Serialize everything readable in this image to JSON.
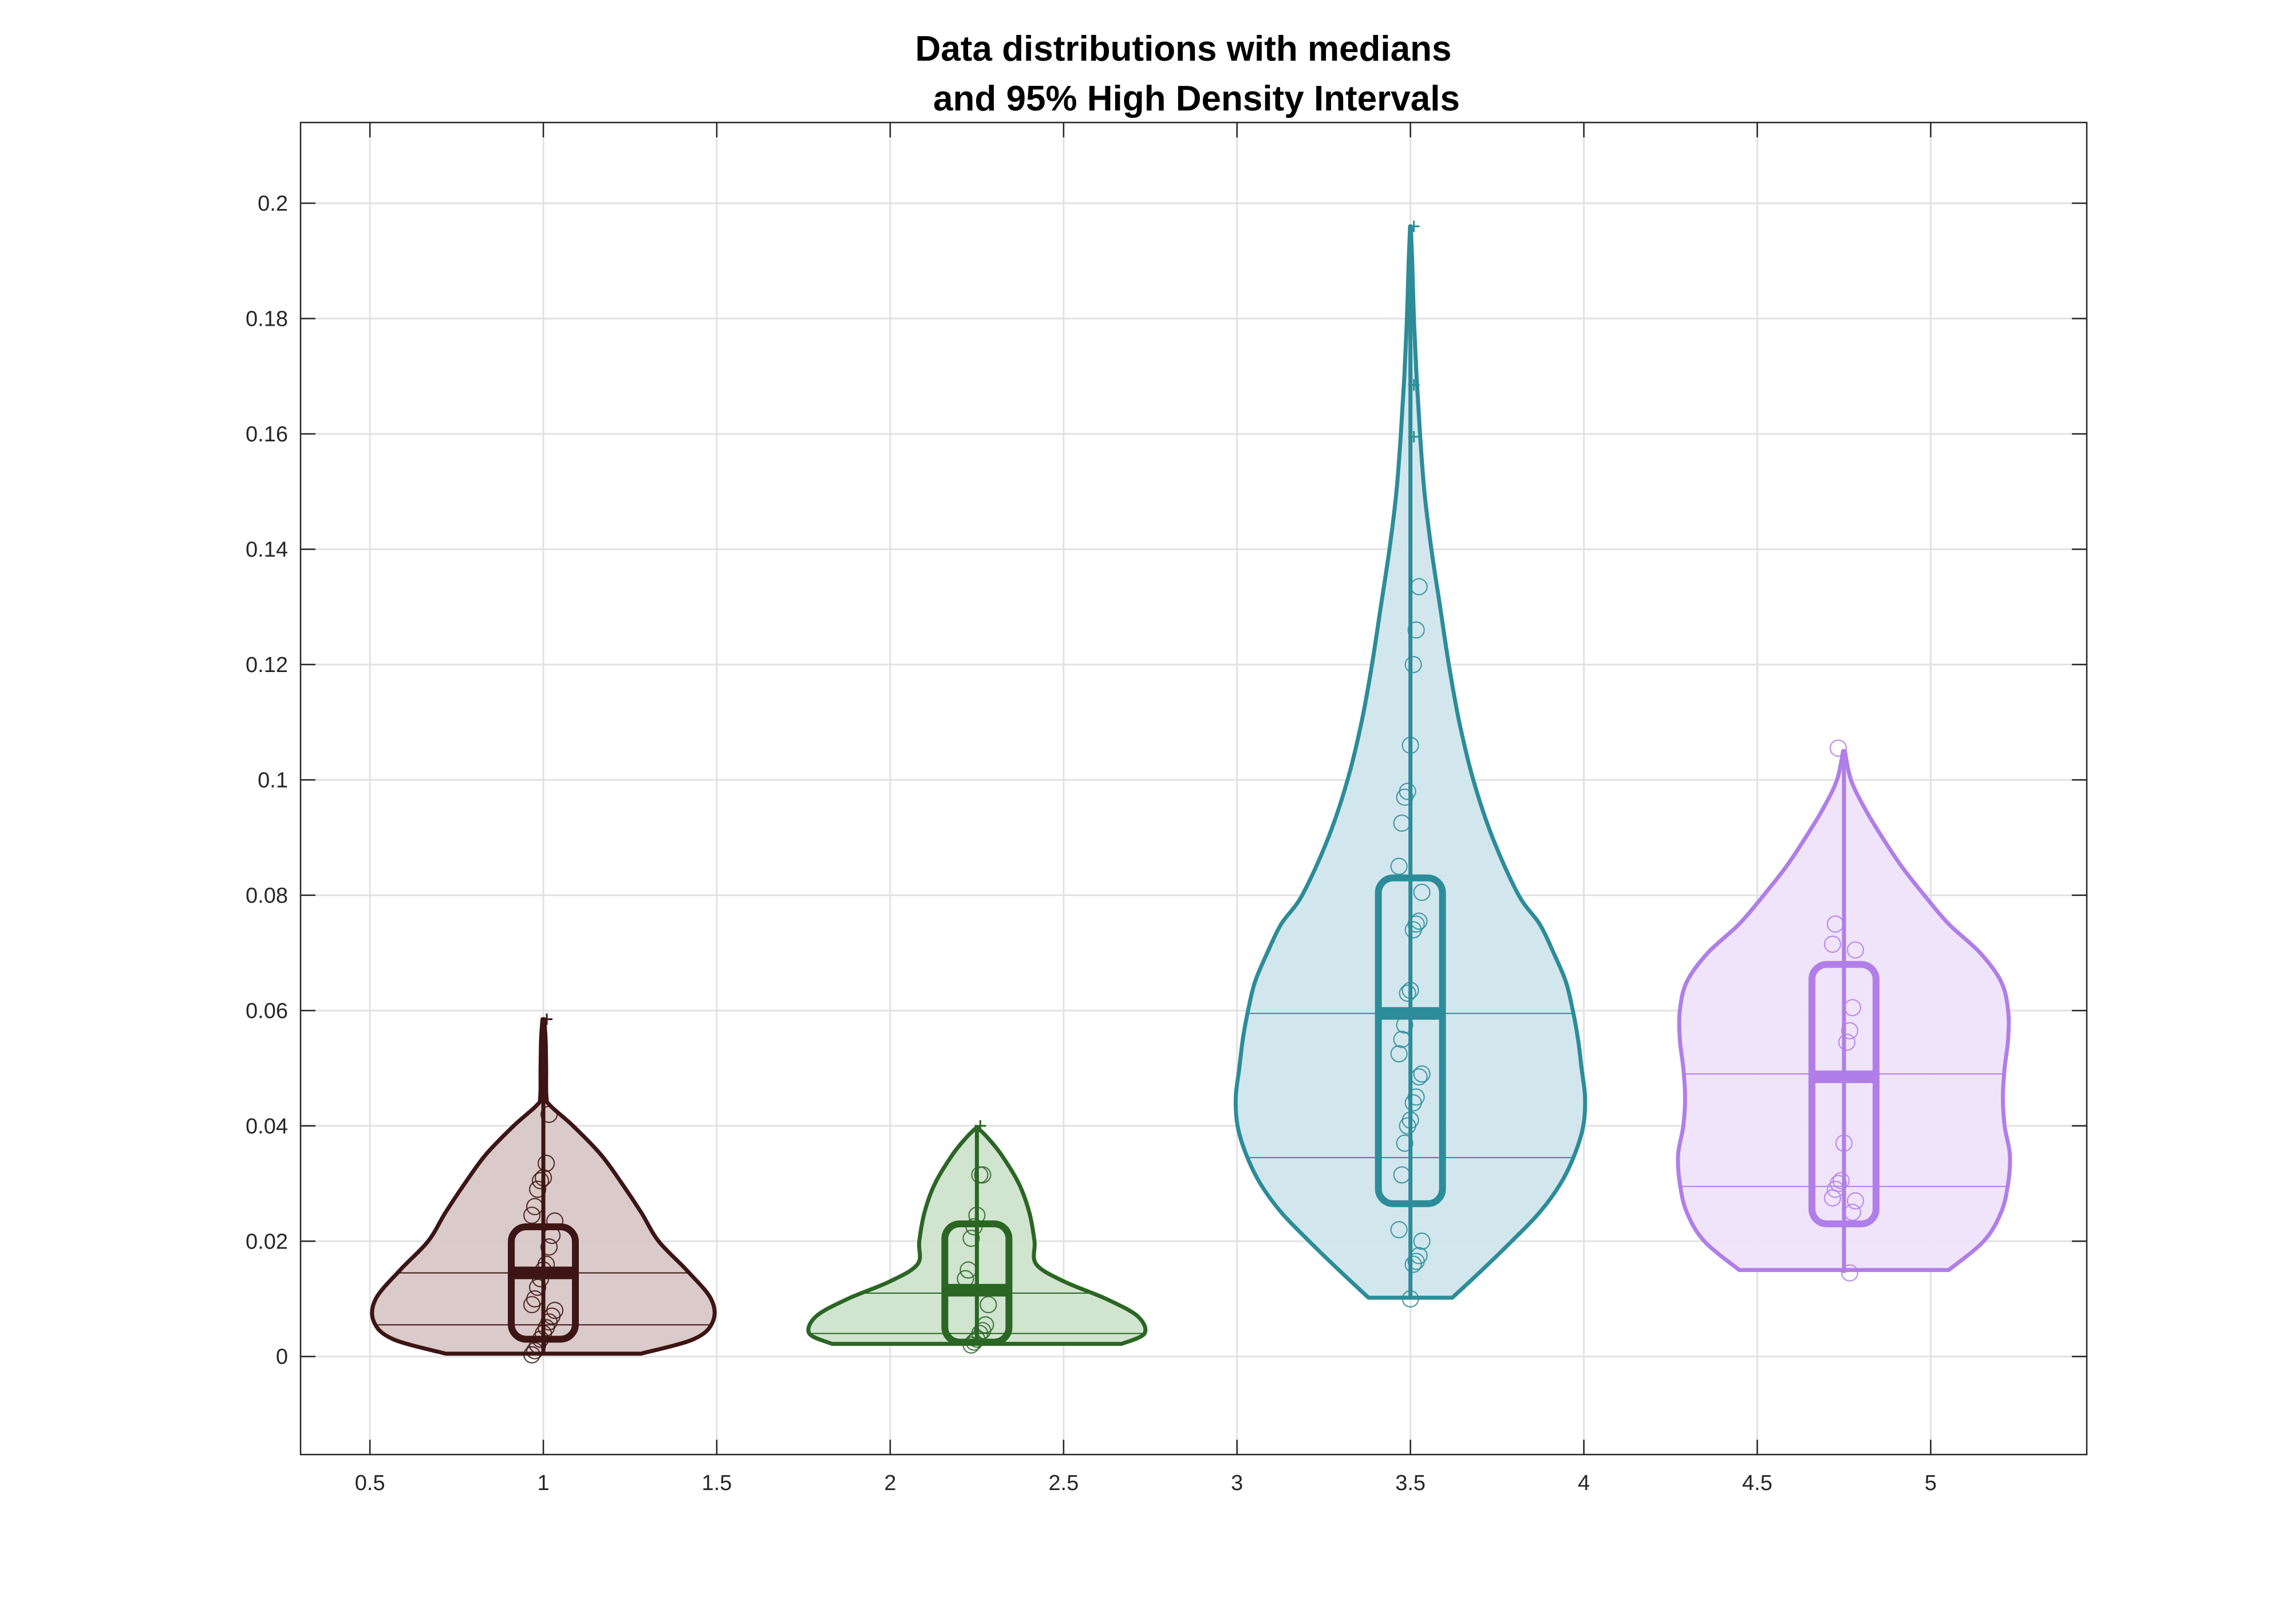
{
  "chart_data": {
    "type": "violin",
    "title": [
      "Data distributions with medians",
      "and 95% High Density Intervals"
    ],
    "xlabel": "",
    "ylabel": "",
    "xlim": [
      0.3,
      5.45
    ],
    "ylim": [
      -0.017,
      0.214
    ],
    "xticks": [
      0.5,
      1,
      1.5,
      2,
      2.5,
      3,
      3.5,
      4,
      4.5,
      5
    ],
    "xtick_labels": [
      "0.5",
      "1",
      "1.5",
      "2",
      "2.5",
      "3",
      "3.5",
      "4",
      "4.5",
      "5"
    ],
    "yticks": [
      0,
      0.02,
      0.04,
      0.06,
      0.08,
      0.1,
      0.12,
      0.14,
      0.16,
      0.18,
      0.2
    ],
    "ytick_labels": [
      "0",
      "0.02",
      "0.04",
      "0.06",
      "0.08",
      "0.1",
      "0.12",
      "0.14",
      "0.16",
      "0.18",
      "0.2"
    ],
    "grid": true,
    "series": [
      {
        "position": 1,
        "color": "#3d1515",
        "fill": "#d9c7c7",
        "median": 0.0145,
        "hdi": [
          0.0055,
          0.0145
        ],
        "box": [
          0.003,
          0.0225
        ],
        "whisker": [
          0.0003,
          0.0585
        ],
        "points": [
          0.0003,
          0.001,
          0.002,
          0.003,
          0.004,
          0.005,
          0.006,
          0.007,
          0.008,
          0.009,
          0.01,
          0.012,
          0.0135,
          0.015,
          0.016,
          0.019,
          0.021,
          0.0235,
          0.0245,
          0.026,
          0.029,
          0.0305,
          0.031,
          0.0335,
          0.042
        ],
        "outliers": [
          0.0585
        ],
        "profile": [
          [
            0.0005,
            0.56
          ],
          [
            0.003,
            0.86
          ],
          [
            0.006,
            0.97
          ],
          [
            0.01,
            0.96
          ],
          [
            0.015,
            0.82
          ],
          [
            0.02,
            0.66
          ],
          [
            0.025,
            0.56
          ],
          [
            0.03,
            0.45
          ],
          [
            0.035,
            0.33
          ],
          [
            0.04,
            0.17
          ],
          [
            0.0435,
            0.04
          ],
          [
            0.045,
            0.018
          ],
          [
            0.05,
            0.016
          ],
          [
            0.055,
            0.013
          ],
          [
            0.0585,
            0.005
          ]
        ]
      },
      {
        "position": 2.25,
        "color": "#2b6624",
        "fill": "#cde3cc",
        "median": 0.0115,
        "hdi": [
          0.004,
          0.011
        ],
        "box": [
          0.0025,
          0.023
        ],
        "whisker": [
          0.002,
          0.04
        ],
        "points": [
          0.002,
          0.0025,
          0.003,
          0.004,
          0.0045,
          0.0055,
          0.009,
          0.0135,
          0.015,
          0.0205,
          0.0225,
          0.0245,
          0.0315,
          0.0315
        ],
        "outliers": [
          0.04
        ],
        "profile": [
          [
            0.0022,
            0.83
          ],
          [
            0.004,
            0.96
          ],
          [
            0.007,
            0.92
          ],
          [
            0.01,
            0.74
          ],
          [
            0.013,
            0.5
          ],
          [
            0.016,
            0.34
          ],
          [
            0.02,
            0.33
          ],
          [
            0.025,
            0.3
          ],
          [
            0.03,
            0.24
          ],
          [
            0.035,
            0.14
          ],
          [
            0.038,
            0.06
          ],
          [
            0.0395,
            0.01
          ]
        ]
      },
      {
        "position": 3.5,
        "color": "#2d8c99",
        "fill": "#d0e6ec",
        "median": 0.0595,
        "hdi": [
          0.0345,
          0.0595
        ],
        "box": [
          0.0265,
          0.083
        ],
        "whisker": [
          0.01,
          0.196
        ],
        "points": [
          0.01,
          0.016,
          0.0165,
          0.0175,
          0.02,
          0.022,
          0.0315,
          0.037,
          0.04,
          0.041,
          0.044,
          0.045,
          0.0485,
          0.049,
          0.0525,
          0.055,
          0.0575,
          0.063,
          0.0635,
          0.074,
          0.075,
          0.0755,
          0.0805,
          0.085,
          0.0925,
          0.097,
          0.098,
          0.106,
          0.12,
          0.126,
          0.1335
        ],
        "outliers": [
          0.1595,
          0.1685,
          0.196
        ],
        "profile": [
          [
            0.0102,
            0.24
          ],
          [
            0.015,
            0.41
          ],
          [
            0.02,
            0.58
          ],
          [
            0.025,
            0.74
          ],
          [
            0.03,
            0.86
          ],
          [
            0.035,
            0.94
          ],
          [
            0.04,
            0.99
          ],
          [
            0.045,
            1.0
          ],
          [
            0.05,
            0.98
          ],
          [
            0.055,
            0.96
          ],
          [
            0.06,
            0.93
          ],
          [
            0.065,
            0.89
          ],
          [
            0.07,
            0.82
          ],
          [
            0.075,
            0.74
          ],
          [
            0.08,
            0.62
          ],
          [
            0.09,
            0.47
          ],
          [
            0.1,
            0.36
          ],
          [
            0.11,
            0.28
          ],
          [
            0.12,
            0.22
          ],
          [
            0.13,
            0.17
          ],
          [
            0.14,
            0.12
          ],
          [
            0.15,
            0.08
          ],
          [
            0.16,
            0.055
          ],
          [
            0.17,
            0.035
          ],
          [
            0.18,
            0.02
          ],
          [
            0.19,
            0.01
          ],
          [
            0.196,
            0.002
          ]
        ]
      },
      {
        "position": 4.75,
        "color": "#b07ee8",
        "fill": "#efe3fb",
        "median": 0.0485,
        "hdi": [
          0.0295,
          0.049
        ],
        "box": [
          0.023,
          0.068
        ],
        "whisker": [
          0.0145,
          0.105
        ],
        "points": [
          0.0145,
          0.025,
          0.027,
          0.0275,
          0.029,
          0.03,
          0.0305,
          0.037,
          0.0545,
          0.0565,
          0.0605,
          0.0705,
          0.0715,
          0.075,
          0.1055
        ],
        "outliers": [],
        "profile": [
          [
            0.015,
            0.6
          ],
          [
            0.02,
            0.8
          ],
          [
            0.025,
            0.9
          ],
          [
            0.03,
            0.94
          ],
          [
            0.035,
            0.95
          ],
          [
            0.04,
            0.92
          ],
          [
            0.045,
            0.91
          ],
          [
            0.05,
            0.92
          ],
          [
            0.055,
            0.94
          ],
          [
            0.06,
            0.94
          ],
          [
            0.065,
            0.9
          ],
          [
            0.07,
            0.78
          ],
          [
            0.075,
            0.6
          ],
          [
            0.08,
            0.46
          ],
          [
            0.085,
            0.33
          ],
          [
            0.09,
            0.22
          ],
          [
            0.095,
            0.12
          ],
          [
            0.1,
            0.04
          ],
          [
            0.105,
            0.005
          ]
        ]
      }
    ]
  }
}
